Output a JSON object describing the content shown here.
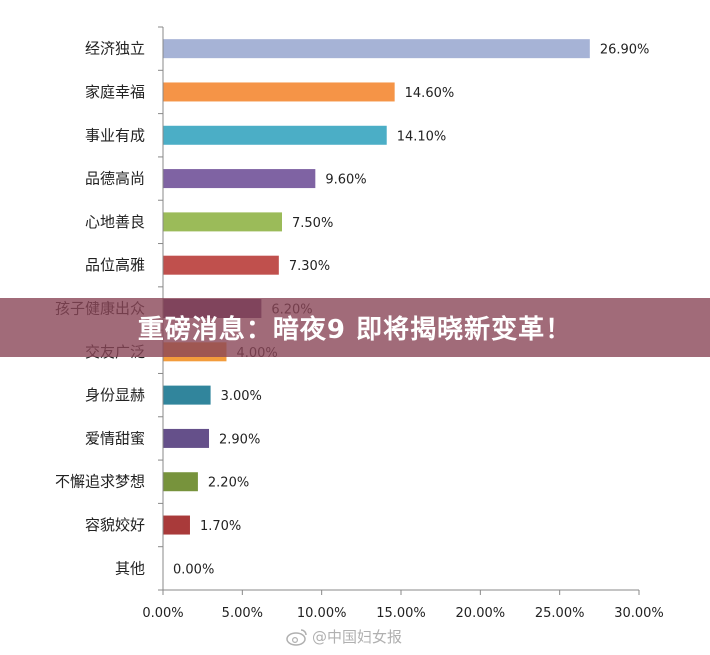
{
  "chart_data": {
    "type": "bar",
    "orientation": "horizontal",
    "categories": [
      "经济独立",
      "家庭幸福",
      "事业有成",
      "品德高尚",
      "心地善良",
      "品位高雅",
      "孩子健康出众",
      "交友广泛",
      "身份显赫",
      "爱情甜蜜",
      "不懈追求梦想",
      "容貌姣好",
      "其他"
    ],
    "values": [
      26.9,
      14.6,
      14.1,
      9.6,
      7.5,
      7.3,
      6.2,
      4.0,
      3.0,
      2.9,
      2.2,
      1.7,
      0.0
    ],
    "value_labels": [
      "26.90%",
      "14.60%",
      "14.10%",
      "9.60%",
      "7.50%",
      "7.30%",
      "6.20%",
      "4.00%",
      "3.00%",
      "2.90%",
      "2.20%",
      "1.70%",
      "0.00%"
    ],
    "colors": [
      "#a6b3d6",
      "#f59447",
      "#4baec6",
      "#7f63a3",
      "#9bbb59",
      "#c0504d",
      "#5a3c6e",
      "#f39c3c",
      "#31859c",
      "#65508a",
      "#77933c",
      "#a93a3a",
      "#999999"
    ],
    "xlim": [
      0,
      30
    ],
    "ticks": [
      0,
      5,
      10,
      15,
      20,
      25,
      30
    ],
    "tick_labels": [
      "0.00%",
      "5.00%",
      "10.00%",
      "15.00%",
      "20.00%",
      "25.00%",
      "30.00%"
    ],
    "grid": false,
    "xlabel": "",
    "ylabel": ""
  },
  "banner": {
    "text": "重磅消息：暗夜9 即将揭晓新变革！"
  },
  "watermark": {
    "text": "@中国妇女报",
    "icon": "weibo-icon"
  }
}
